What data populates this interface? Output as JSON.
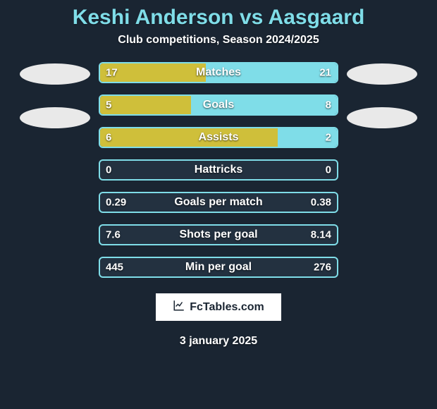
{
  "title": "Keshi Anderson vs Aasgaard",
  "subtitle": "Club competitions, Season 2024/2025",
  "footer_brand": "FcTables.com",
  "footer_date": "3 january 2025",
  "colors": {
    "background": "#1a2532",
    "accent": "#7fdde8",
    "left_fill": "#cfbf3a",
    "right_fill": "#7fdde8",
    "bar_bg": "#233140",
    "text": "#ffffff",
    "oval": "#e9e9e9"
  },
  "left_ovals": 2,
  "right_ovals": 2,
  "bars": [
    {
      "label": "Matches",
      "left_val": "17",
      "right_val": "21",
      "left_pct": 44.7,
      "right_pct": 55.3
    },
    {
      "label": "Goals",
      "left_val": "5",
      "right_val": "8",
      "left_pct": 38.5,
      "right_pct": 61.5
    },
    {
      "label": "Assists",
      "left_val": "6",
      "right_val": "2",
      "left_pct": 75.0,
      "right_pct": 25.0
    },
    {
      "label": "Hattricks",
      "left_val": "0",
      "right_val": "0",
      "left_pct": 0,
      "right_pct": 0
    },
    {
      "label": "Goals per match",
      "left_val": "0.29",
      "right_val": "0.38",
      "left_pct": 0,
      "right_pct": 0
    },
    {
      "label": "Shots per goal",
      "left_val": "7.6",
      "right_val": "8.14",
      "left_pct": 0,
      "right_pct": 0
    },
    {
      "label": "Min per goal",
      "left_val": "445",
      "right_val": "276",
      "left_pct": 0,
      "right_pct": 0
    }
  ]
}
